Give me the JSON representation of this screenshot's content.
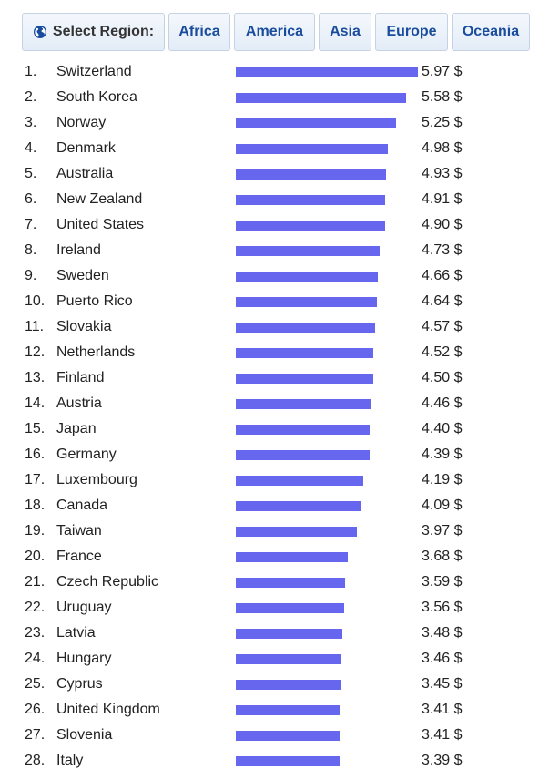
{
  "nav": {
    "select_label": "Select Region:",
    "regions": [
      "Africa",
      "America",
      "Asia",
      "Europe",
      "Oceania"
    ]
  },
  "colors": {
    "bar": "#6666ee",
    "button_text": "#1a4c9e"
  },
  "chart_data": {
    "type": "bar",
    "orientation": "horizontal",
    "value_suffix": " $",
    "xlim": [
      0,
      5.97
    ],
    "ranks": [
      "1.",
      "2.",
      "3.",
      "4.",
      "5.",
      "6.",
      "7.",
      "8.",
      "9.",
      "10.",
      "11.",
      "12.",
      "13.",
      "14.",
      "15.",
      "16.",
      "17.",
      "18.",
      "19.",
      "20.",
      "21.",
      "22.",
      "23.",
      "24.",
      "25.",
      "26.",
      "27.",
      "28."
    ],
    "categories": [
      "Switzerland",
      "South Korea",
      "Norway",
      "Denmark",
      "Australia",
      "New Zealand",
      "United States",
      "Ireland",
      "Sweden",
      "Puerto Rico",
      "Slovakia",
      "Netherlands",
      "Finland",
      "Austria",
      "Japan",
      "Germany",
      "Luxembourg",
      "Canada",
      "Taiwan",
      "France",
      "Czech Republic",
      "Uruguay",
      "Latvia",
      "Hungary",
      "Cyprus",
      "United Kingdom",
      "Slovenia",
      "Italy"
    ],
    "values": [
      5.97,
      5.58,
      5.25,
      4.98,
      4.93,
      4.91,
      4.9,
      4.73,
      4.66,
      4.64,
      4.57,
      4.52,
      4.5,
      4.46,
      4.4,
      4.39,
      4.19,
      4.09,
      3.97,
      3.68,
      3.59,
      3.56,
      3.48,
      3.46,
      3.45,
      3.41,
      3.41,
      3.39
    ],
    "value_labels": [
      "5.97 $",
      "5.58 $",
      "5.25 $",
      "4.98 $",
      "4.93 $",
      "4.91 $",
      "4.90 $",
      "4.73 $",
      "4.66 $",
      "4.64 $",
      "4.57 $",
      "4.52 $",
      "4.50 $",
      "4.46 $",
      "4.40 $",
      "4.39 $",
      "4.19 $",
      "4.09 $",
      "3.97 $",
      "3.68 $",
      "3.59 $",
      "3.56 $",
      "3.48 $",
      "3.46 $",
      "3.45 $",
      "3.41 $",
      "3.41 $",
      "3.39 $"
    ]
  }
}
